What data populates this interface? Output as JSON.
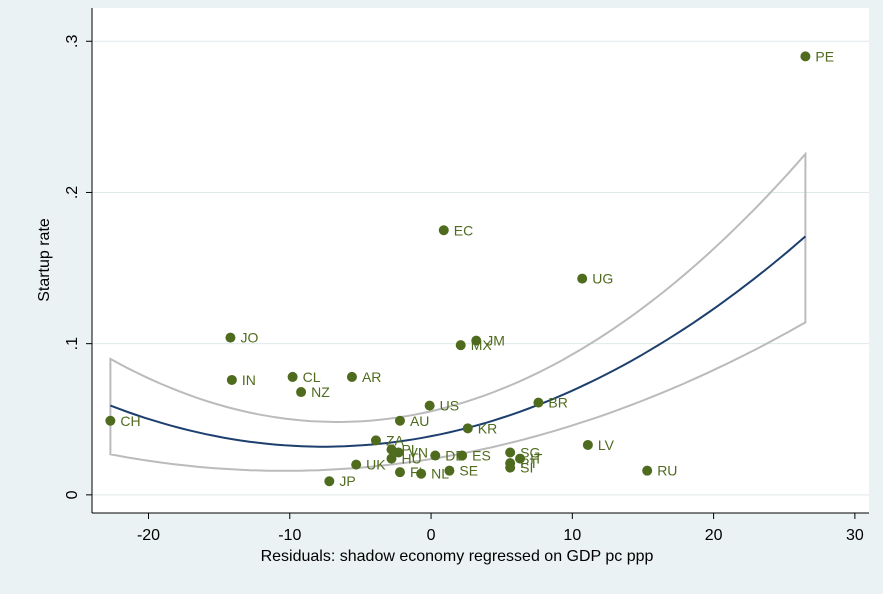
{
  "chart_data": {
    "type": "scatter",
    "xlabel": "Residuals: shadow economy regressed on GDP pc ppp",
    "ylabel": "Startup rate",
    "xlim": [
      -24,
      31
    ],
    "ylim": [
      -0.012,
      0.322
    ],
    "xticks": [
      -20,
      -10,
      0,
      10,
      20,
      30
    ],
    "yticks": [
      0,
      0.1,
      0.2,
      0.3
    ],
    "xtick_labels": [
      "-20",
      "-10",
      "0",
      "10",
      "20",
      "30"
    ],
    "ytick_labels": [
      "0",
      ".1",
      ".2",
      ".3"
    ],
    "grid": "horizontal",
    "colors": {
      "background": "#eaf2f3",
      "plot_background": "#ffffff",
      "grid": "#dfe9ea",
      "point": "#4f6b1e",
      "label": "#4f6b1e",
      "fit": "#1c3f6e",
      "ci": "#bbbbbb"
    },
    "points": [
      {
        "label": "PE",
        "x": 26.5,
        "y": 0.29
      },
      {
        "label": "EC",
        "x": 0.9,
        "y": 0.175
      },
      {
        "label": "UG",
        "x": 10.7,
        "y": 0.143
      },
      {
        "label": "JO",
        "x": -14.2,
        "y": 0.104
      },
      {
        "label": "JM",
        "x": 3.2,
        "y": 0.102
      },
      {
        "label": "MX",
        "x": 2.1,
        "y": 0.099
      },
      {
        "label": "CL",
        "x": -9.8,
        "y": 0.078
      },
      {
        "label": "AR",
        "x": -5.6,
        "y": 0.078
      },
      {
        "label": "IN",
        "x": -14.1,
        "y": 0.076
      },
      {
        "label": "NZ",
        "x": -9.2,
        "y": 0.068
      },
      {
        "label": "BR",
        "x": 7.6,
        "y": 0.061
      },
      {
        "label": "US",
        "x": -0.1,
        "y": 0.059
      },
      {
        "label": "CH",
        "x": -22.7,
        "y": 0.049
      },
      {
        "label": "AU",
        "x": -2.2,
        "y": 0.049
      },
      {
        "label": "KR",
        "x": 2.6,
        "y": 0.044
      },
      {
        "label": "ZA",
        "x": -3.9,
        "y": 0.036
      },
      {
        "label": "LV",
        "x": 11.1,
        "y": 0.033
      },
      {
        "label": "PL",
        "x": -2.8,
        "y": 0.03
      },
      {
        "label": "VN",
        "x": -2.3,
        "y": 0.028
      },
      {
        "label": "SG",
        "x": 5.6,
        "y": 0.028
      },
      {
        "label": "HU",
        "x": -2.8,
        "y": 0.024
      },
      {
        "label": "DE",
        "x": 0.3,
        "y": 0.026
      },
      {
        "label": "ES",
        "x": 2.2,
        "y": 0.026
      },
      {
        "label": "IT",
        "x": 6.3,
        "y": 0.024
      },
      {
        "label": "PT",
        "x": 5.6,
        "y": 0.021
      },
      {
        "label": "SI",
        "x": 5.6,
        "y": 0.018
      },
      {
        "label": "UK",
        "x": -5.3,
        "y": 0.02
      },
      {
        "label": "RU",
        "x": 15.3,
        "y": 0.016
      },
      {
        "label": "SE",
        "x": 1.3,
        "y": 0.016
      },
      {
        "label": "FI",
        "x": -2.2,
        "y": 0.015
      },
      {
        "label": "NL",
        "x": -0.7,
        "y": 0.014
      },
      {
        "label": "JP",
        "x": -7.2,
        "y": 0.009
      }
    ],
    "fit_range": [
      -22.7,
      26.5
    ],
    "fit_line": {
      "a": 0.0388,
      "b": 0.00182,
      "c": 0.0001195
    },
    "ci_upper_quad": {
      "a": 0.0553,
      "b": 0.00214,
      "c": 0.0001615
    },
    "ci_lower_quad": {
      "a": 0.0237,
      "b": 0.0015,
      "c": 7.21e-05
    }
  }
}
